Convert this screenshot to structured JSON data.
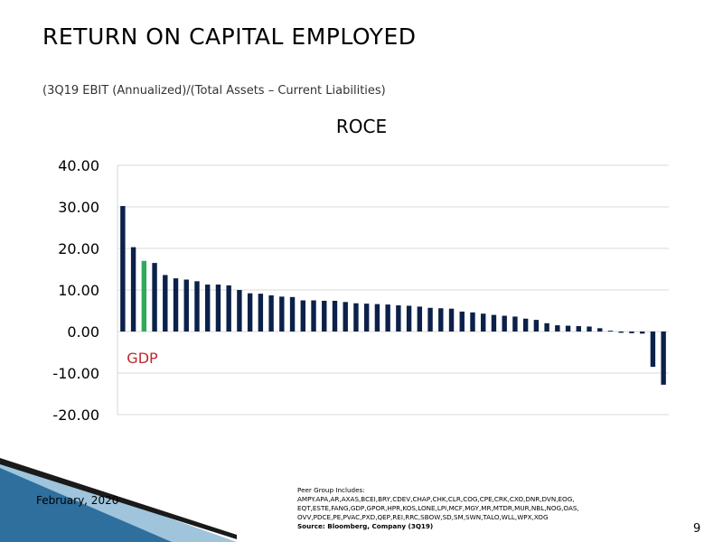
{
  "slide": {
    "title": "RETURN ON CAPITAL EMPLOYED",
    "subtitle": "(3Q19 EBIT (Annualized)/(Total Assets – Current Liabilities)",
    "date": "February, 2020",
    "page_number": "9",
    "peer_group_heading": "Peer Group Includes:",
    "peer_group_list": "AMPY.APA,AR,AXAS,BCEI,BRY,CDEV,CHAP,CHK,CLR,COG,CPE,CRK,CXO,DNR,DVN,EOG, EQT,ESTE,FANG,GDP,GPOR,HPR,KOS,LONE,LPI,MCF,MGY,MR,MTDR,MUR,NBL,NOG,OAS, OVV,PDCE,PE,PVAC,PXD,QEP,REI,RRC,SBOW,SD,SM,SWN,TALO,WLL,WPX,XOG",
    "source": "Source: Bloomberg, Company (3Q19)"
  },
  "colors": {
    "bar": "#0b2149",
    "highlight": "#2faa5a",
    "label_highlight": "#c0272d",
    "grid": "#d9d9d9"
  },
  "chart_data": {
    "type": "bar",
    "title": "ROCE",
    "ylim": [
      -20,
      40
    ],
    "yticks": [
      40,
      30,
      20,
      10,
      0,
      -10,
      -20
    ],
    "ytick_labels": [
      "40.00",
      "30.00",
      "20.00",
      "10.00",
      "0.00",
      "-10.00",
      "-20.00"
    ],
    "grid": true,
    "highlight_index": 2,
    "highlight_label": "GDP",
    "values": [
      30.2,
      20.3,
      17.0,
      16.5,
      13.6,
      12.8,
      12.5,
      12.1,
      11.3,
      11.3,
      11.1,
      10.0,
      9.2,
      9.1,
      8.7,
      8.4,
      8.3,
      7.5,
      7.5,
      7.4,
      7.4,
      7.1,
      6.8,
      6.7,
      6.6,
      6.5,
      6.3,
      6.2,
      6.0,
      5.7,
      5.6,
      5.5,
      4.8,
      4.6,
      4.3,
      4.0,
      3.8,
      3.6,
      3.1,
      2.8,
      2.0,
      1.5,
      1.4,
      1.3,
      1.2,
      0.8,
      0.2,
      -0.3,
      -0.4,
      -0.5,
      -8.5,
      -12.8
    ]
  }
}
